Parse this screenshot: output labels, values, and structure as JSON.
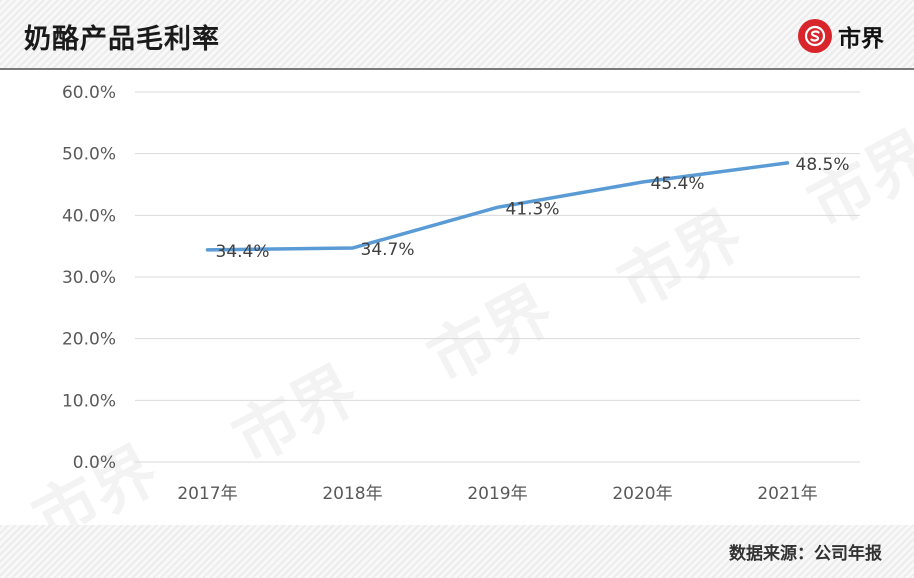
{
  "header": {
    "title": "奶酪产品毛利率",
    "logo_text": "市界"
  },
  "footer": {
    "source": "数据来源：公司年报"
  },
  "watermark_text": "市界",
  "colors": {
    "line": "#5b9bd5",
    "grid": "#d9d9d9",
    "axis_text": "#595959",
    "label_text": "#404040",
    "logo_red": "#d8242a"
  },
  "chart_data": {
    "type": "line",
    "title": "奶酪产品毛利率",
    "categories": [
      "2017年",
      "2018年",
      "2019年",
      "2020年",
      "2021年"
    ],
    "series": [
      {
        "values": [
          34.4,
          34.7,
          41.3,
          45.4,
          48.5
        ]
      }
    ],
    "data_labels": [
      "34.4%",
      "34.7%",
      "41.3%",
      "45.4%",
      "48.5%"
    ],
    "y_ticks": [
      0,
      10,
      20,
      30,
      40,
      50,
      60
    ],
    "y_tick_labels": [
      "0.0%",
      "10.0%",
      "20.0%",
      "30.0%",
      "40.0%",
      "50.0%",
      "60.0%"
    ],
    "ylim": [
      0,
      60
    ],
    "grid": true,
    "legend": "none"
  }
}
